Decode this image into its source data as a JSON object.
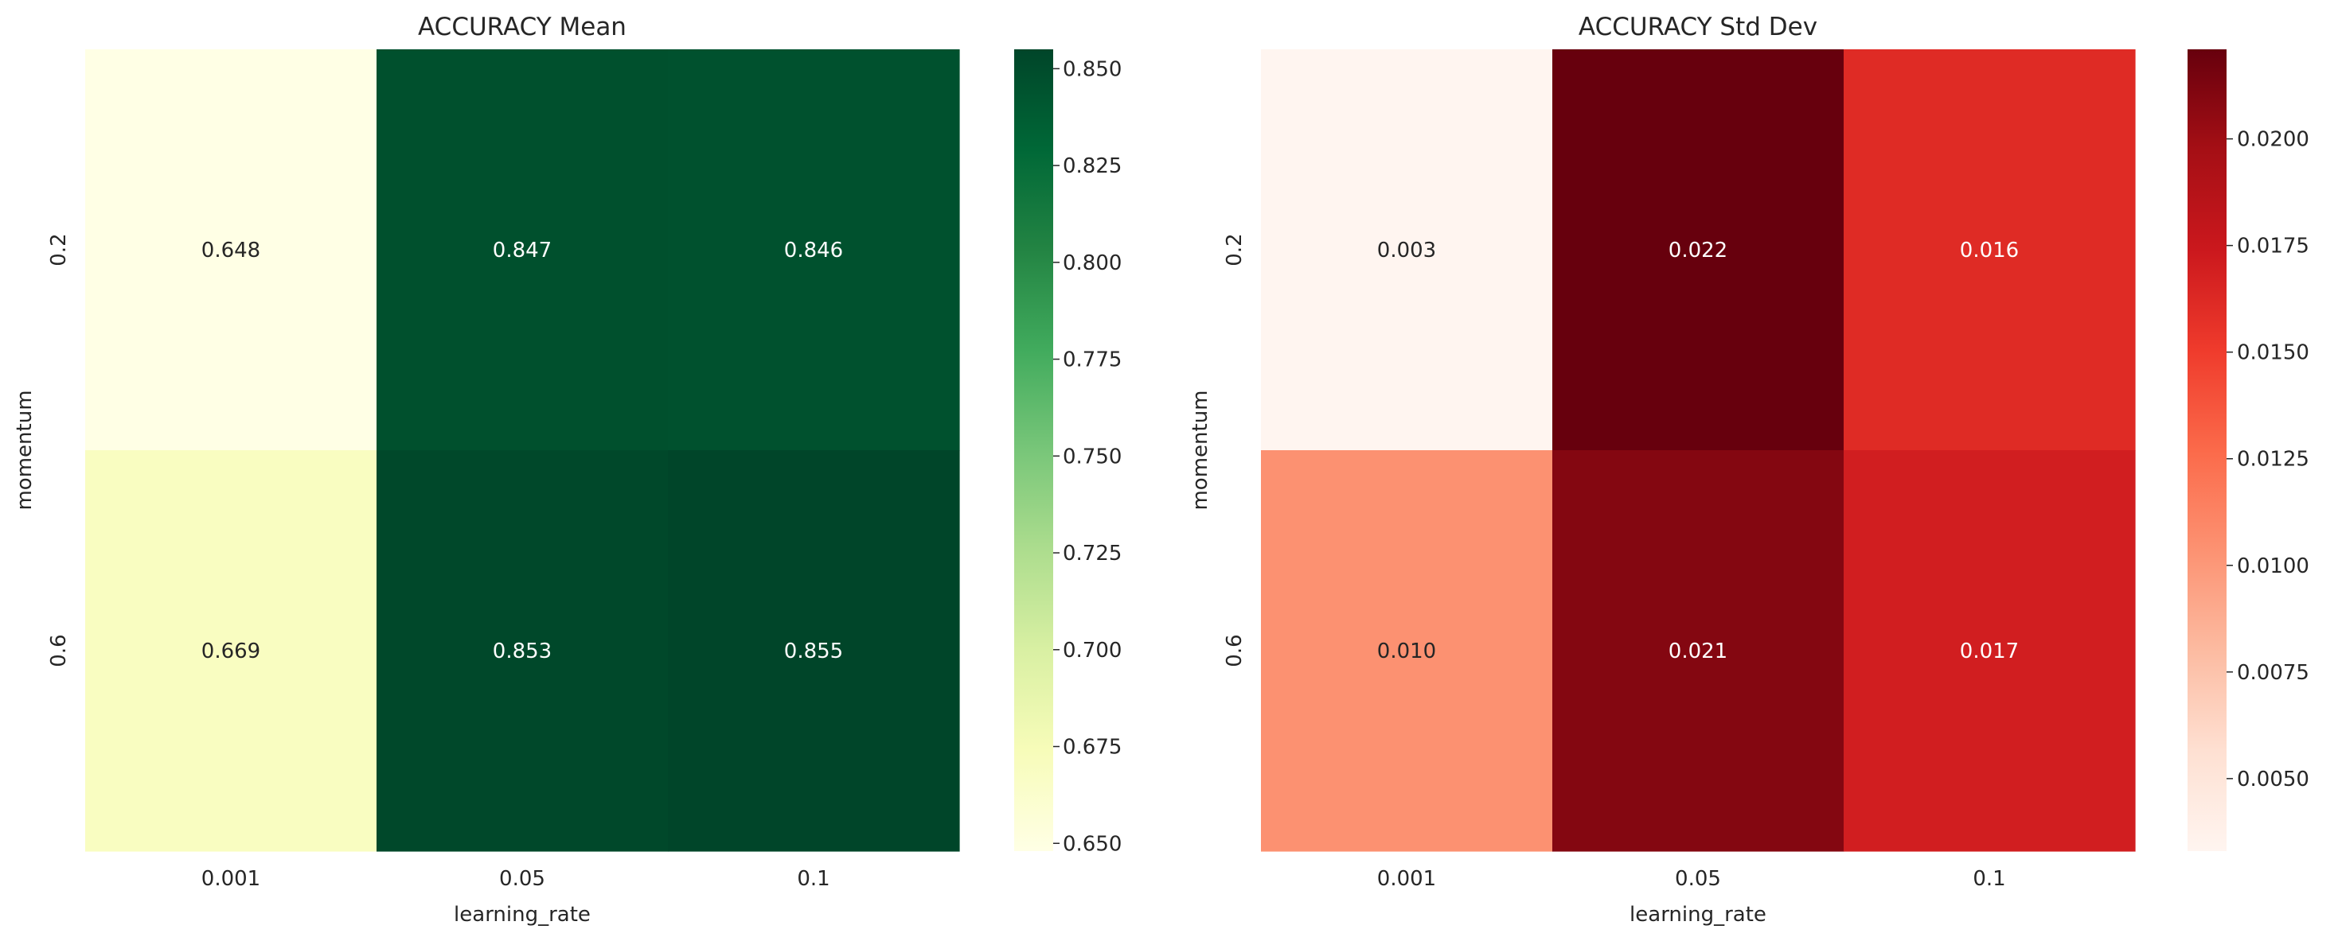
{
  "chart_data": [
    {
      "type": "heatmap",
      "title": "ACCURACY Mean",
      "xlabel": "learning_rate",
      "ylabel": "momentum",
      "x_categories": [
        "0.001",
        "0.05",
        "0.1"
      ],
      "y_categories": [
        "0.2",
        "0.6"
      ],
      "values": [
        [
          0.648,
          0.847,
          0.846
        ],
        [
          0.669,
          0.853,
          0.855
        ]
      ],
      "annotations": [
        [
          "0.648",
          "0.847",
          "0.846"
        ],
        [
          "0.669",
          "0.853",
          "0.855"
        ]
      ],
      "colormap": "YlGn",
      "colors": [
        "#ffffe5",
        "#f7fcb9",
        "#d9f0a3",
        "#addd8e",
        "#78c679",
        "#41ab5d",
        "#238443",
        "#006837",
        "#004529"
      ],
      "vmin": 0.648,
      "vmax": 0.855,
      "colorbar_ticks": [
        "0.650",
        "0.675",
        "0.700",
        "0.725",
        "0.750",
        "0.775",
        "0.800",
        "0.825",
        "0.850"
      ],
      "grid": false
    },
    {
      "type": "heatmap",
      "title": "ACCURACY Std Dev",
      "xlabel": "learning_rate",
      "ylabel": "momentum",
      "x_categories": [
        "0.001",
        "0.05",
        "0.1"
      ],
      "y_categories": [
        "0.2",
        "0.6"
      ],
      "values": [
        [
          0.0033,
          0.0221,
          0.0161
        ],
        [
          0.0104,
          0.021,
          0.017
        ]
      ],
      "annotations": [
        [
          "0.003",
          "0.022",
          "0.016"
        ],
        [
          "0.010",
          "0.021",
          "0.017"
        ]
      ],
      "colormap": "Reds",
      "colors": [
        "#fff5f0",
        "#fee0d2",
        "#fcbba1",
        "#fc9272",
        "#fb6a4a",
        "#ef3b2c",
        "#cb181d",
        "#a50f15",
        "#67000d"
      ],
      "vmin": 0.0033,
      "vmax": 0.0221,
      "colorbar_ticks": [
        "0.0050",
        "0.0075",
        "0.0100",
        "0.0125",
        "0.0150",
        "0.0175",
        "0.0200"
      ],
      "grid": false
    }
  ]
}
